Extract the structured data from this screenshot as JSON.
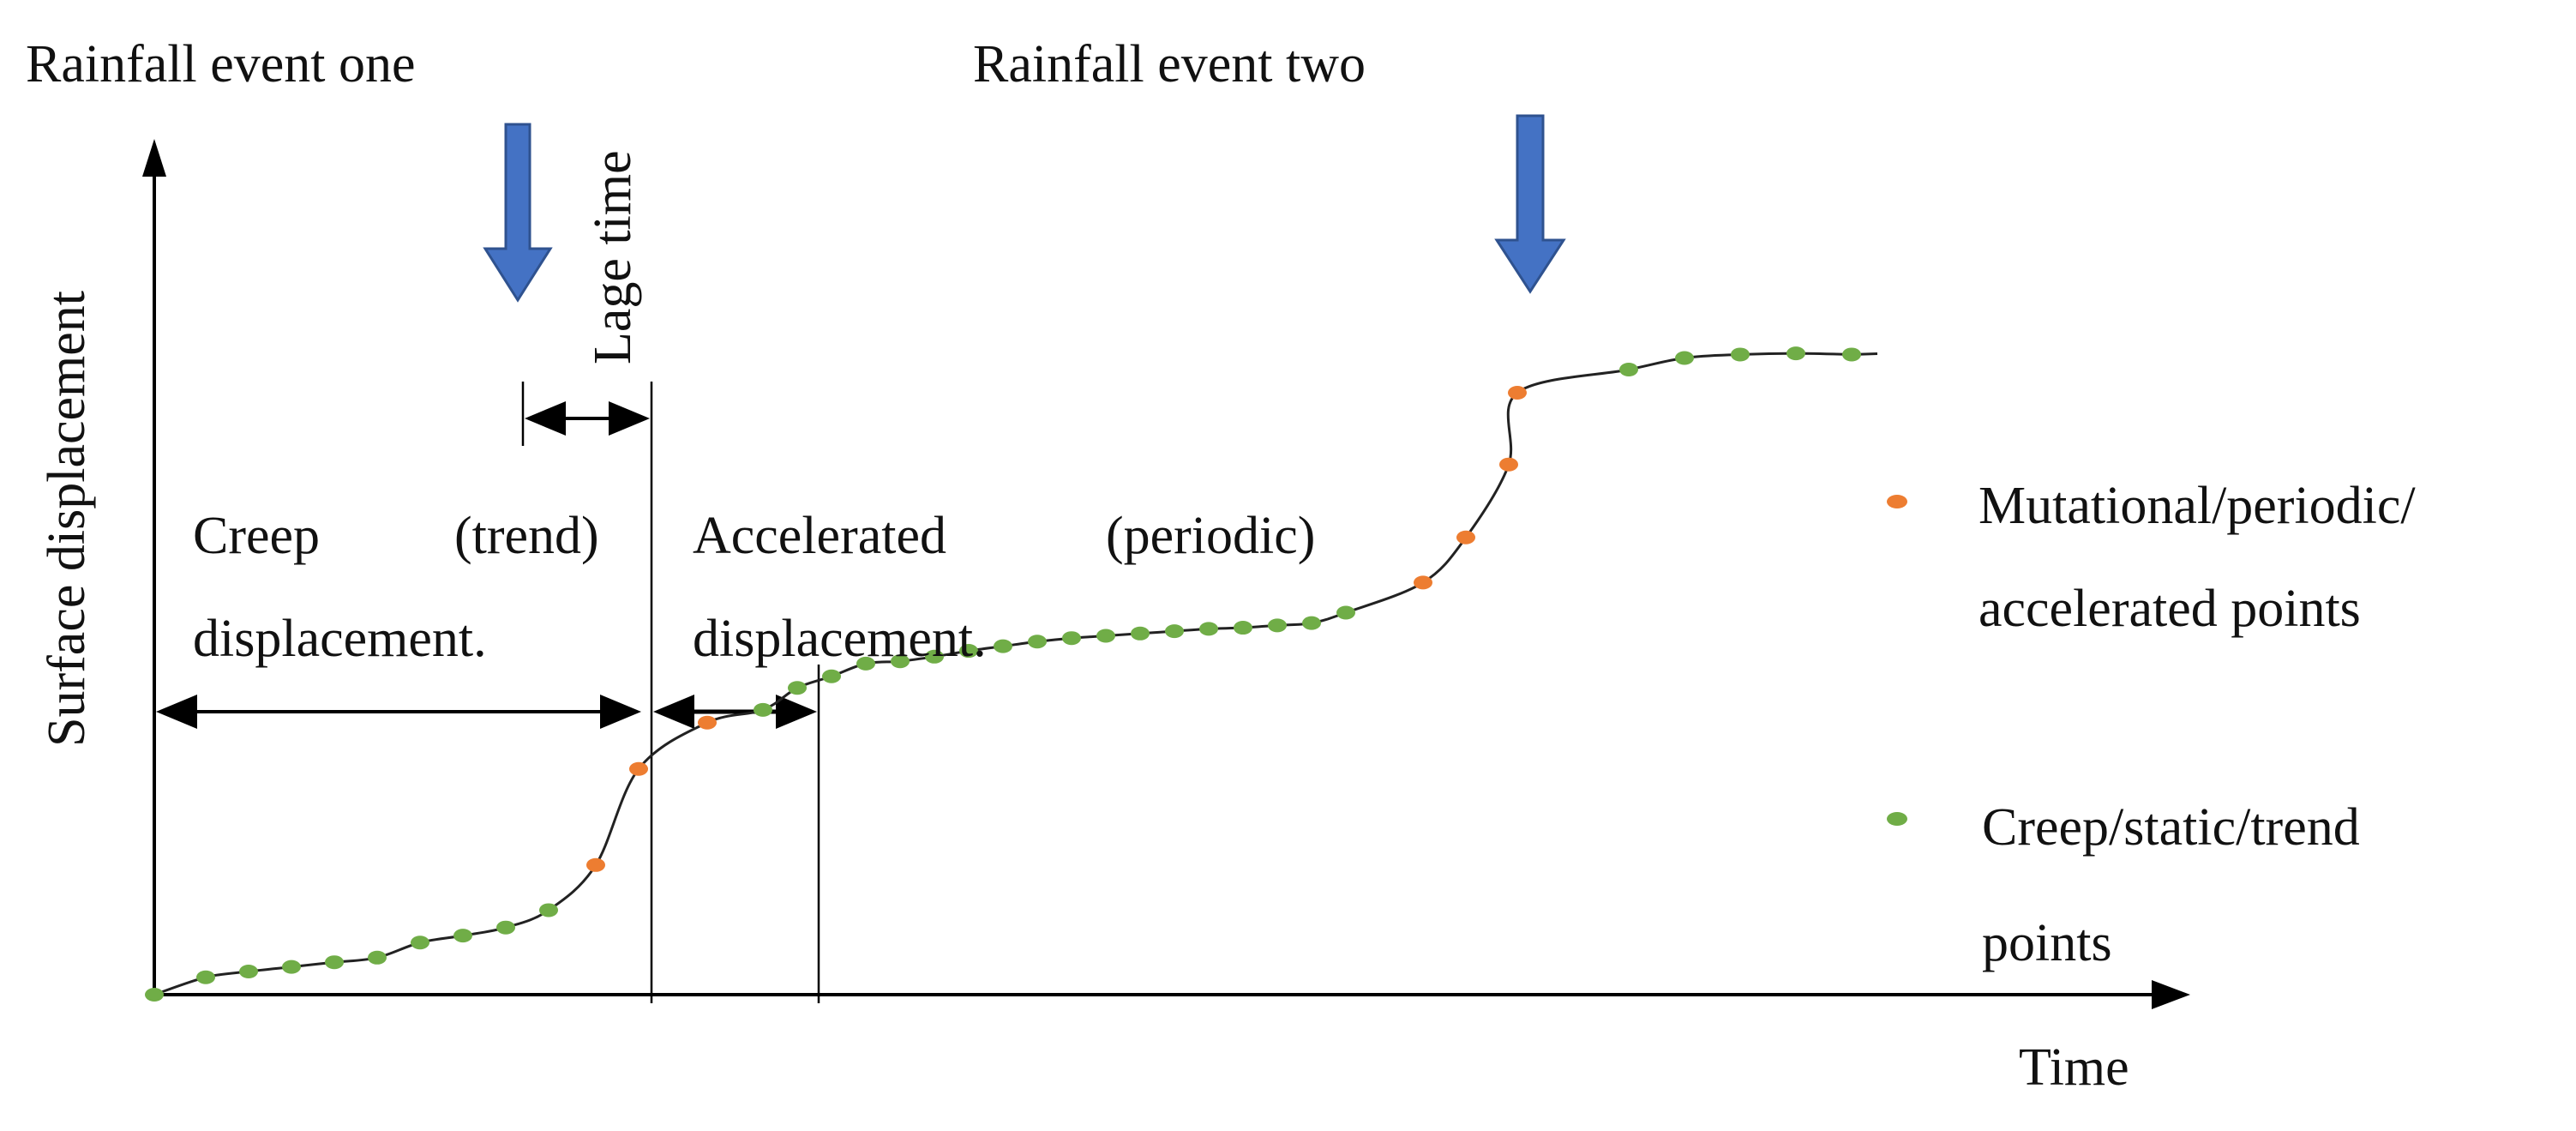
{
  "labels": {
    "rain_one": "Rainfall event one",
    "rain_two": "Rainfall event two",
    "lag_time": "Lage time",
    "y_axis": "Surface displacement",
    "x_axis": "Time",
    "creep_word1": "Creep",
    "creep_word2": "(trend)",
    "creep_line2": "displacement.",
    "accel_word1": "Accelerated",
    "accel_word2": "(periodic)",
    "accel_line2": "displacement."
  },
  "legend": [
    {
      "label_line1": "Mutational/periodic/",
      "label_line2": "accelerated points",
      "color": "#ED7D31"
    },
    {
      "label_line1": "Creep/static/trend",
      "label_line2": "points",
      "color": "#70AD47"
    }
  ],
  "colors": {
    "rain_arrow_fill": "#4472C4",
    "rain_arrow_stroke": "#2F528F",
    "accelerated": "#ED7D31",
    "creep": "#70AD47",
    "curve": "#222222",
    "axis": "#000000"
  },
  "curve_points": {
    "creep": [
      [
        0.0,
        0.0
      ],
      [
        1.2,
        1.5
      ],
      [
        2.2,
        2.0
      ],
      [
        3.2,
        2.4
      ],
      [
        4.2,
        2.8
      ],
      [
        5.2,
        3.2
      ],
      [
        6.2,
        4.5
      ],
      [
        7.2,
        5.1
      ],
      [
        8.2,
        5.8
      ],
      [
        9.2,
        7.3
      ],
      [
        14.2,
        24.6
      ],
      [
        15.0,
        26.5
      ],
      [
        15.8,
        27.5
      ],
      [
        16.6,
        28.6
      ],
      [
        17.4,
        28.8
      ],
      [
        18.2,
        29.2
      ],
      [
        19.0,
        29.7
      ],
      [
        19.8,
        30.1
      ],
      [
        20.6,
        30.5
      ],
      [
        21.4,
        30.8
      ],
      [
        22.2,
        31.0
      ],
      [
        23.0,
        31.2
      ],
      [
        23.8,
        31.4
      ],
      [
        24.6,
        31.6
      ],
      [
        25.4,
        31.7
      ],
      [
        26.2,
        31.9
      ],
      [
        27.0,
        32.1
      ],
      [
        27.8,
        33.0
      ],
      [
        34.4,
        54.0
      ],
      [
        35.7,
        55.0
      ],
      [
        37.0,
        55.3
      ],
      [
        38.3,
        55.4
      ],
      [
        39.6,
        55.3
      ]
    ],
    "accelerated": [
      [
        10.3,
        11.2
      ],
      [
        11.3,
        19.5
      ],
      [
        12.9,
        23.5
      ],
      [
        29.6,
        35.6
      ],
      [
        30.6,
        39.5
      ],
      [
        31.6,
        45.8
      ],
      [
        31.8,
        52.0
      ]
    ]
  }
}
